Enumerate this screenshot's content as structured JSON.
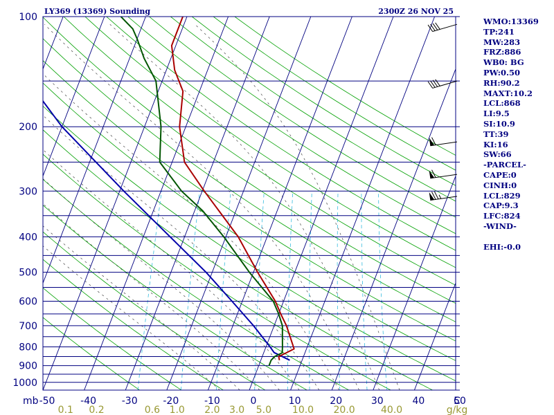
{
  "header": {
    "station": "LY369 (13369) Sounding",
    "time": "2300Z 26 NOV 25"
  },
  "indices": {
    "wmo": "WMO:13369",
    "tp": "TP:241",
    "mw": "MW:283",
    "frz": "FRZ:886",
    "wb0": "WB0: BG",
    "pw": "PW:0.50",
    "rh": "RH:90.2",
    "maxt": "MAXT:10.2",
    "lcl": "LCL:868",
    "li": "LI:9.5",
    "si": "SI:10.9",
    "tt": "TT:39",
    "ki": "KI:16",
    "sw": "SW:66",
    "parcel_header": "-PARCEL-",
    "cape": "CAPE:0",
    "cinh": "CINH:0",
    "parcel_lcl": "LCL:829",
    "cap": "CAP:9.3",
    "lfc": "LFC:824",
    "wind_header": "-WIND-",
    "ehi": "EHI:-0.0"
  },
  "chart_data": {
    "type": "skew-t",
    "title": "LY369 (13369) Sounding",
    "valid_time": "2300Z 26 NOV 25",
    "pressure_unit": "mb",
    "temperature_unit": "C",
    "mixing_ratio_unit": "g/kg",
    "pressure_range": [
      1050,
      100
    ],
    "temperature_range": [
      -50,
      50
    ],
    "pressure_ticks": [
      "100",
      "200",
      "300",
      "400",
      "500",
      "600",
      "700",
      "800",
      "900",
      "1000"
    ],
    "isobars": [
      1050,
      1000,
      950,
      900,
      850,
      800,
      750,
      700,
      650,
      600,
      550,
      500,
      450,
      400,
      350,
      300,
      250,
      200,
      150,
      100
    ],
    "temperature_ticks": [
      "-50",
      "-40",
      "-30",
      "-20",
      "-10",
      "0",
      "10",
      "20",
      "30",
      "40",
      "50"
    ],
    "mixing_ratio_labels": [
      "0.1",
      "0.2",
      "0.6",
      "1.0",
      "2.0",
      "3.0",
      "5.0",
      "10.0",
      "20.0",
      "40.0"
    ],
    "mixing_ratio_label_temps": [
      -44.5,
      -37,
      -23.5,
      -17.5,
      -9,
      -3,
      3.5,
      13,
      23,
      34.5
    ],
    "isotherms_from": -110,
    "isotherms_to": 50,
    "isotherm_step": 10,
    "dry_adiabats_theta": [
      -30,
      -20,
      -10,
      0,
      10,
      20,
      30,
      40,
      50,
      60,
      70,
      80,
      90,
      100,
      110,
      120,
      130,
      140,
      150,
      160,
      170,
      180
    ],
    "moist_adiabats_thetaw": [
      -10,
      -5,
      0,
      5,
      10,
      15,
      20,
      25,
      30,
      35
    ],
    "mixing_ratio_lines": [
      0.4,
      1.0,
      2.0,
      4.0,
      7.0,
      10.0,
      16.0,
      24.0,
      32.0
    ],
    "temperature": {
      "name": "Temperature",
      "color": "#aa0000",
      "points": [
        {
          "p": 870,
          "t": 4.5
        },
        {
          "p": 850,
          "t": 4.0
        },
        {
          "p": 830,
          "t": 5.5
        },
        {
          "p": 810,
          "t": 7.0
        },
        {
          "p": 700,
          "t": 3.0
        },
        {
          "p": 650,
          "t": 0.5
        },
        {
          "p": 600,
          "t": -2.0
        },
        {
          "p": 500,
          "t": -9.0
        },
        {
          "p": 400,
          "t": -17.0
        },
        {
          "p": 300,
          "t": -29.5
        },
        {
          "p": 250,
          "t": -37.0
        },
        {
          "p": 200,
          "t": -41.5
        },
        {
          "p": 160,
          "t": -44.0
        },
        {
          "p": 140,
          "t": -48.0
        },
        {
          "p": 120,
          "t": -51.0
        },
        {
          "p": 110,
          "t": -51.0
        },
        {
          "p": 100,
          "t": -51.0
        }
      ]
    },
    "dewpoint": {
      "name": "Dewpoint",
      "color": "#005500",
      "points": [
        {
          "p": 900,
          "t": 2.5
        },
        {
          "p": 870,
          "t": 2.5
        },
        {
          "p": 850,
          "t": 3.0
        },
        {
          "p": 830,
          "t": 4.5
        },
        {
          "p": 800,
          "t": 4.0
        },
        {
          "p": 700,
          "t": 2.0
        },
        {
          "p": 650,
          "t": 0.0
        },
        {
          "p": 600,
          "t": -2.5
        },
        {
          "p": 500,
          "t": -11.0
        },
        {
          "p": 400,
          "t": -20.5
        },
        {
          "p": 340,
          "t": -28.0
        },
        {
          "p": 300,
          "t": -35.0
        },
        {
          "p": 250,
          "t": -43.0
        },
        {
          "p": 200,
          "t": -46.0
        },
        {
          "p": 150,
          "t": -51.5
        },
        {
          "p": 130,
          "t": -56.5
        },
        {
          "p": 115,
          "t": -60.0
        },
        {
          "p": 108,
          "t": -62.0
        },
        {
          "p": 100,
          "t": -66.0
        }
      ]
    },
    "parcel": {
      "name": "Parcel",
      "color": "#0000aa",
      "points": [
        {
          "p": 870,
          "t": 7.0
        },
        {
          "p": 829,
          "t": 2.5
        },
        {
          "p": 800,
          "t": 1.0
        },
        {
          "p": 700,
          "t": -5.0
        },
        {
          "p": 600,
          "t": -12.5
        },
        {
          "p": 500,
          "t": -21.5
        },
        {
          "p": 400,
          "t": -33.5
        },
        {
          "p": 300,
          "t": -49.0
        },
        {
          "p": 200,
          "t": -70.0
        },
        {
          "p": 150,
          "t": -82.5
        },
        {
          "p": 120,
          "t": -93.0
        }
      ]
    },
    "wind_barbs": [
      {
        "p": 105,
        "speed_kt": 40
      },
      {
        "p": 150,
        "speed_kt": 40
      },
      {
        "p": 220,
        "speed_kt": 60
      },
      {
        "p": 270,
        "speed_kt": 60
      },
      {
        "p": 310,
        "speed_kt": 75
      }
    ]
  }
}
